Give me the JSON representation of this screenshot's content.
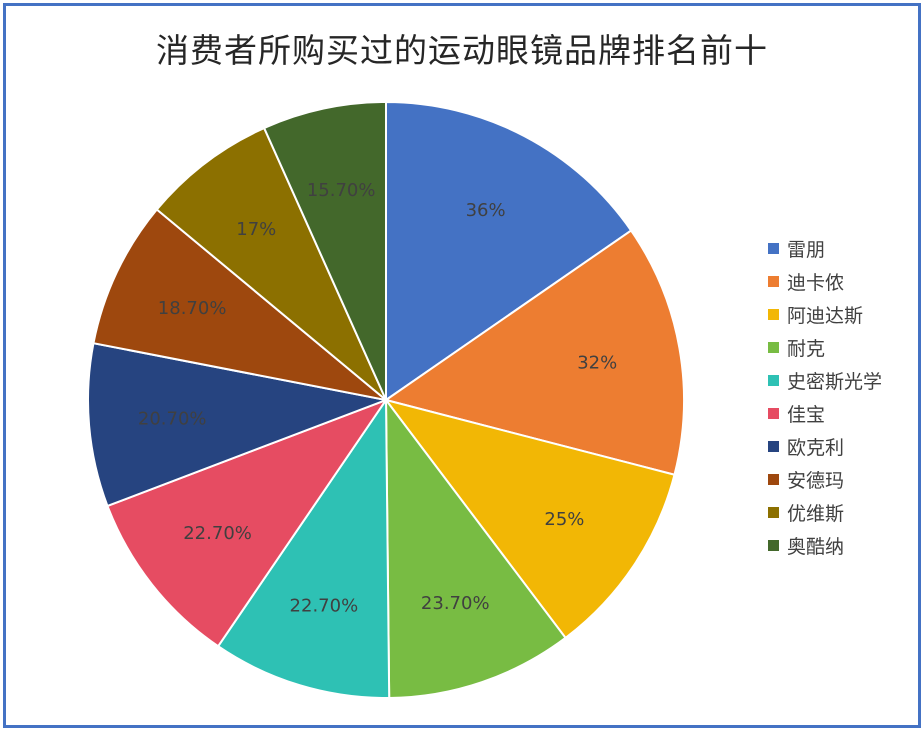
{
  "chart_data": {
    "type": "pie",
    "title": "消费者所购买过的运动眼镜品牌排名前十",
    "legend_position": "right",
    "slices": [
      {
        "name": "雷朋",
        "value": 36,
        "label": "36%",
        "color": "#4472c4"
      },
      {
        "name": "迪卡侬",
        "value": 32,
        "label": "32%",
        "color": "#ed7d31"
      },
      {
        "name": "阿迪达斯",
        "value": 25,
        "label": "25%",
        "color": "#f2b705"
      },
      {
        "name": "耐克",
        "value": 23.7,
        "label": "23.70%",
        "color": "#78bc43"
      },
      {
        "name": "史密斯光学",
        "value": 22.7,
        "label": "22.70%",
        "color": "#2ec1b4"
      },
      {
        "name": "佳宝",
        "value": 22.7,
        "label": "22.70%",
        "color": "#e64c62"
      },
      {
        "name": "欧克利",
        "value": 20.7,
        "label": "20.70%",
        "color": "#264480"
      },
      {
        "name": "安德玛",
        "value": 18.7,
        "label": "18.70%",
        "color": "#9e480e"
      },
      {
        "name": "优维斯",
        "value": 17,
        "label": "17%",
        "color": "#8c7000"
      },
      {
        "name": "奥酷纳",
        "value": 15.7,
        "label": "15.70%",
        "color": "#43682b"
      }
    ]
  }
}
